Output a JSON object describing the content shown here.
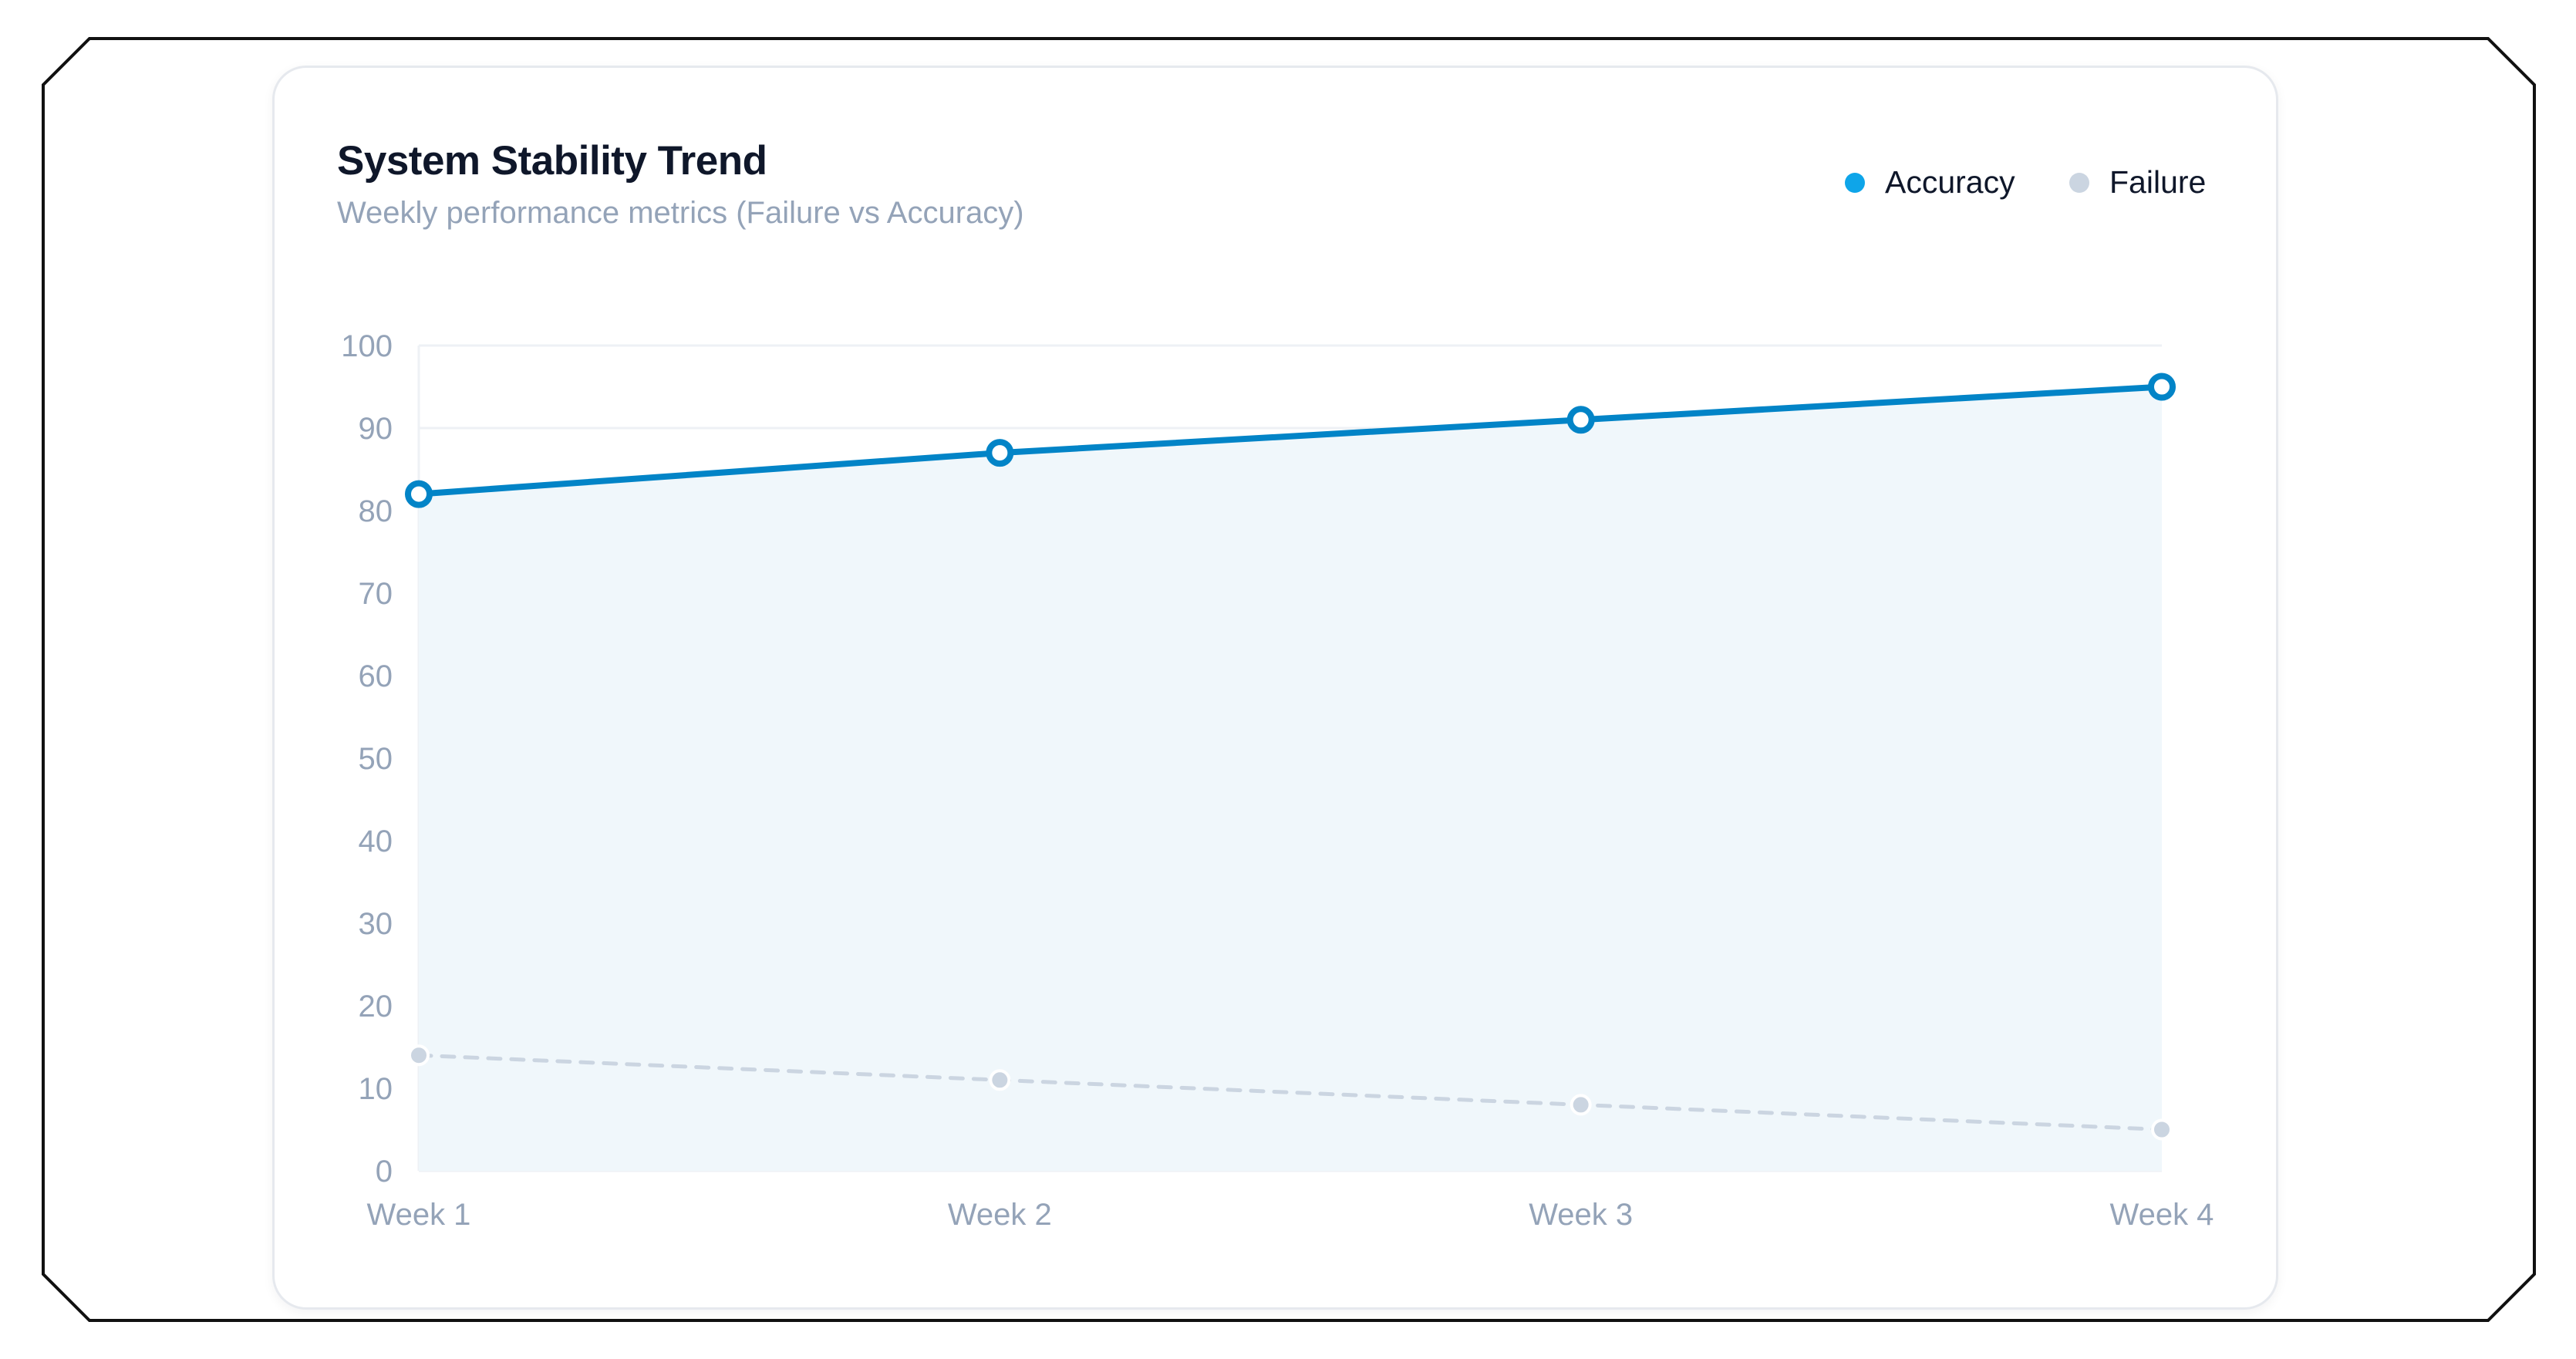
{
  "colors": {
    "accuracy": "#0284c7",
    "accuracy_legend": "#0ea5e9",
    "accuracy_fill": "#f0f7fb",
    "failure": "#cbd5e1",
    "grid": "#eef1f5",
    "tick_text": "#94a3b8"
  },
  "chart_data": {
    "type": "line",
    "title": "System Stability Trend",
    "subtitle": "Weekly performance metrics (Failure vs Accuracy)",
    "categories": [
      "Week 1",
      "Week 2",
      "Week 3",
      "Week 4"
    ],
    "series": [
      {
        "name": "Accuracy",
        "values": [
          82,
          87,
          91,
          95
        ],
        "style": "solid",
        "area_fill": true
      },
      {
        "name": "Failure",
        "values": [
          14,
          11,
          8,
          5
        ],
        "style": "dashed",
        "area_fill": false
      }
    ],
    "ylim": [
      0,
      100
    ],
    "yticks": [
      0,
      10,
      20,
      30,
      40,
      50,
      60,
      70,
      80,
      90,
      100
    ],
    "xlabel": "",
    "ylabel": "",
    "grid": true,
    "legend_position": "top-right"
  }
}
